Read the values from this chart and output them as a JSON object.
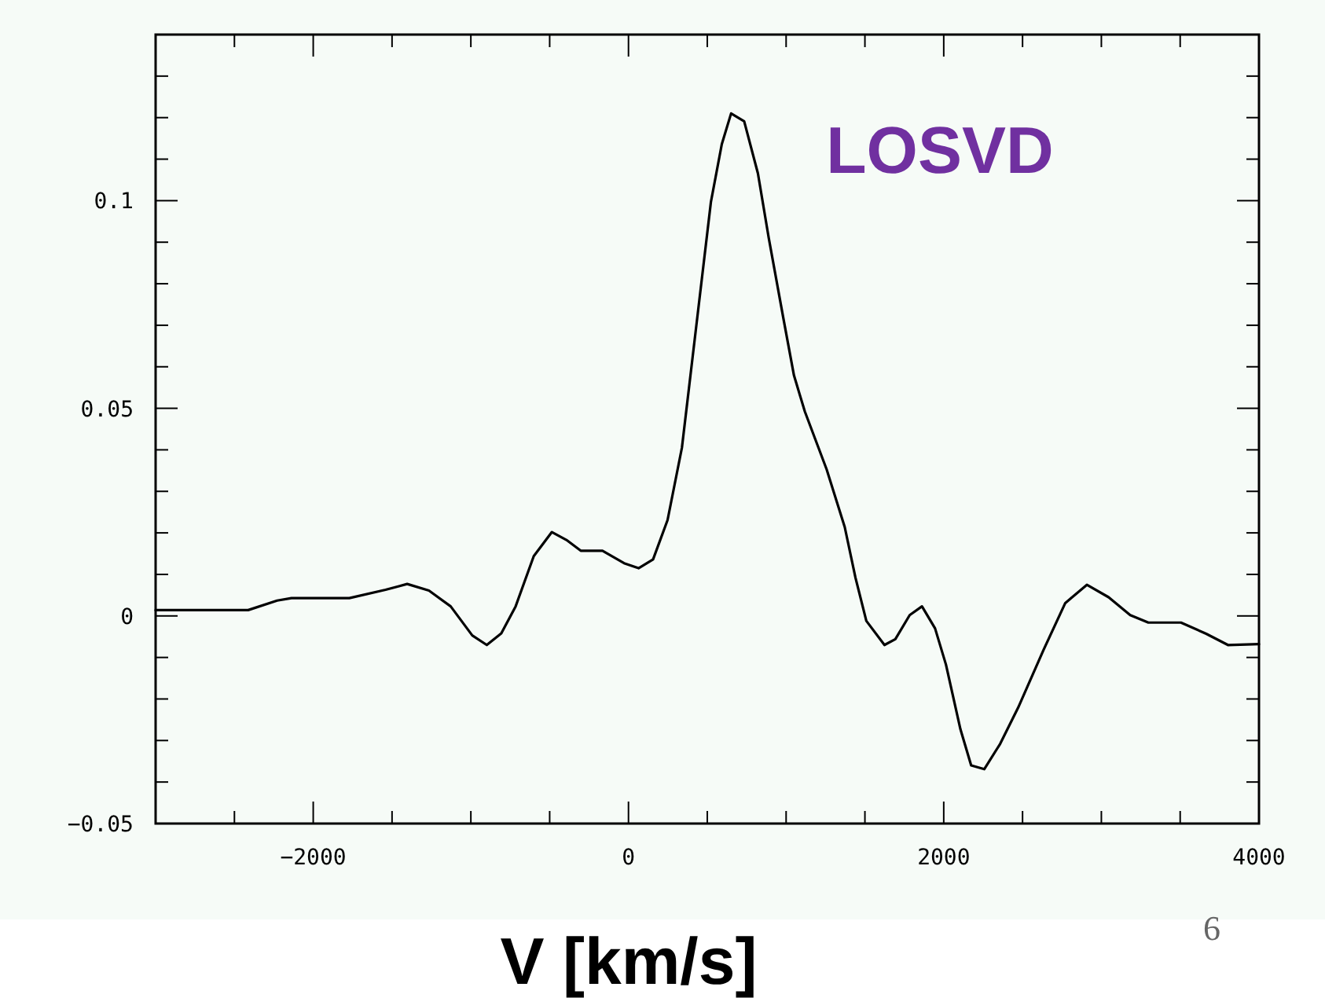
{
  "chart_data": {
    "type": "line",
    "xlabel": "V [km/s]",
    "annotations": [
      "LOSVD",
      "6"
    ],
    "xlim": [
      -3000,
      4000
    ],
    "ylim": [
      -0.05,
      0.14
    ],
    "xticks": [
      {
        "value": -3000,
        "label": null
      },
      {
        "value": -2500,
        "label": null
      },
      {
        "value": -2000,
        "label": "−2000"
      },
      {
        "value": -1500,
        "label": null
      },
      {
        "value": -1000,
        "label": null
      },
      {
        "value": -500,
        "label": null
      },
      0,
      {
        "value": 500,
        "label": null
      },
      {
        "value": 1000,
        "label": null
      },
      {
        "value": 1500,
        "label": null
      },
      2000,
      {
        "value": 2500,
        "label": null
      },
      {
        "value": 3000,
        "label": null
      },
      {
        "value": 3500,
        "label": null
      },
      4000
    ],
    "yticks": [
      {
        "value": -0.05,
        "label": "−0.05"
      },
      {
        "value": -0.04,
        "label": null
      },
      {
        "value": -0.03,
        "label": null
      },
      {
        "value": -0.02,
        "label": null
      },
      {
        "value": -0.01,
        "label": null
      },
      0,
      {
        "value": 0.01,
        "label": null
      },
      {
        "value": 0.02,
        "label": null
      },
      {
        "value": 0.03,
        "label": null
      },
      {
        "value": 0.04,
        "label": null
      },
      0.05,
      {
        "value": 0.06,
        "label": null
      },
      {
        "value": 0.07,
        "label": null
      },
      {
        "value": 0.08,
        "label": null
      },
      {
        "value": 0.09,
        "label": null
      },
      0.1,
      {
        "value": 0.11,
        "label": null
      },
      {
        "value": 0.12,
        "label": null
      },
      {
        "value": 0.13,
        "label": null
      },
      {
        "value": 0.14,
        "label": null
      }
    ],
    "grid": false,
    "marker": "none",
    "line_style": "solid",
    "series": [
      {
        "color": "#000000",
        "x": [
          -3000,
          -2413,
          -2229,
          -2138,
          -1771,
          -1541,
          -1404,
          -1266,
          -1128,
          -991,
          -899,
          -807,
          -716,
          -601,
          -486,
          -394,
          -303,
          -165,
          -28,
          64,
          156,
          248,
          339,
          431,
          523,
          592,
          651,
          734,
          821,
          890,
          982,
          1050,
          1119,
          1257,
          1372,
          1440,
          1509,
          1624,
          1693,
          1784,
          1862,
          1945,
          2014,
          2106,
          2174,
          2257,
          2358,
          2472,
          2633,
          2771,
          2908,
          3046,
          3183,
          3298,
          3505,
          3665,
          3803,
          4000
        ],
        "values": [
          0.0014,
          0.0014,
          0.0037,
          0.0043,
          0.0043,
          0.0063,
          0.0077,
          0.0061,
          0.0023,
          -0.0047,
          -0.007,
          -0.0042,
          0.0023,
          0.0144,
          0.0202,
          0.0183,
          0.0157,
          0.0157,
          0.0127,
          0.0115,
          0.0136,
          0.0231,
          0.0405,
          0.0701,
          0.0997,
          0.1136,
          0.121,
          0.1191,
          0.1066,
          0.091,
          0.0718,
          0.0579,
          0.0492,
          0.0353,
          0.0214,
          0.0092,
          -0.0012,
          -0.007,
          -0.0056,
          0.0002,
          0.0023,
          -0.003,
          -0.0117,
          -0.0273,
          -0.036,
          -0.0369,
          -0.0308,
          -0.0221,
          -0.0082,
          0.0031,
          0.0075,
          0.0045,
          0.0002,
          -0.0016,
          -0.0016,
          -0.0043,
          -0.007,
          -0.0068
        ]
      }
    ]
  }
}
